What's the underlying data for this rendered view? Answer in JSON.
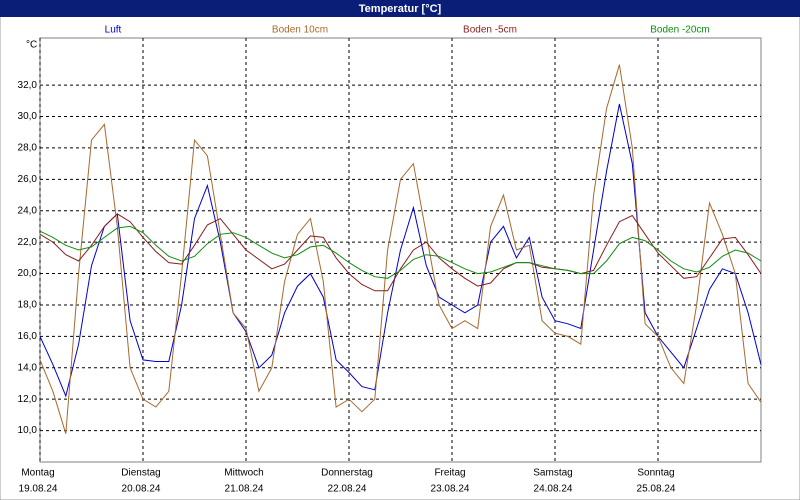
{
  "chart_data": {
    "type": "line",
    "title": "Temperatur [°C]",
    "y_unit": "°C",
    "x": [
      0,
      0.125,
      0.25,
      0.375,
      0.5,
      0.625,
      0.75,
      0.875,
      1,
      1.125,
      1.25,
      1.375,
      1.5,
      1.625,
      1.75,
      1.875,
      2,
      2.125,
      2.25,
      2.375,
      2.5,
      2.625,
      2.75,
      2.875,
      3,
      3.125,
      3.25,
      3.375,
      3.5,
      3.625,
      3.75,
      3.875,
      4,
      4.125,
      4.25,
      4.375,
      4.5,
      4.625,
      4.75,
      4.875,
      5,
      5.125,
      5.25,
      5.375,
      5.5,
      5.625,
      5.75,
      5.875,
      6,
      6.125,
      6.25,
      6.375,
      6.5,
      6.625,
      6.75,
      6.875,
      7
    ],
    "series": [
      {
        "name": "Luft",
        "color": "#0000cc",
        "values": [
          16.0,
          14.2,
          12.2,
          15.5,
          20.5,
          23.0,
          23.8,
          17.0,
          14.5,
          14.4,
          14.4,
          18.0,
          23.5,
          25.6,
          22.0,
          17.5,
          16.3,
          14.0,
          14.8,
          17.5,
          19.2,
          20.0,
          18.5,
          14.5,
          13.7,
          12.8,
          12.6,
          17.5,
          21.5,
          24.2,
          20.5,
          18.5,
          18.0,
          17.5,
          18.0,
          22.0,
          23.0,
          21.0,
          22.3,
          18.5,
          17.0,
          16.8,
          16.5,
          21.5,
          26.5,
          30.8,
          27.0,
          17.5,
          16.0,
          15.0,
          14.0,
          16.5,
          19.0,
          20.3,
          20.0,
          17.5,
          14.2
        ]
      },
      {
        "name": "Boden 10cm",
        "color": "#a8692e",
        "values": [
          14.5,
          12.5,
          9.8,
          20.0,
          28.5,
          29.5,
          23.0,
          14.0,
          12.0,
          11.5,
          12.5,
          20.0,
          28.5,
          27.5,
          22.5,
          17.5,
          16.5,
          12.5,
          14.0,
          19.5,
          22.5,
          23.5,
          19.5,
          11.5,
          12.0,
          11.2,
          12.0,
          21.5,
          26.0,
          27.0,
          22.5,
          18.0,
          16.5,
          17.0,
          16.5,
          23.0,
          25.0,
          21.5,
          21.8,
          17.0,
          16.2,
          16.0,
          15.5,
          25.0,
          30.5,
          33.3,
          28.0,
          16.8,
          16.0,
          14.0,
          13.0,
          18.0,
          24.5,
          22.5,
          20.0,
          13.0,
          11.8
        ]
      },
      {
        "name": "Boden -5cm",
        "color": "#8c1c1c",
        "values": [
          22.5,
          22.0,
          21.2,
          20.8,
          21.8,
          23.0,
          23.8,
          23.3,
          22.3,
          21.4,
          20.7,
          20.6,
          21.8,
          23.1,
          23.5,
          22.5,
          21.5,
          20.9,
          20.3,
          20.6,
          21.5,
          22.4,
          22.3,
          21.0,
          20.0,
          19.3,
          18.9,
          18.9,
          20.3,
          21.5,
          22.0,
          21.0,
          20.3,
          19.7,
          19.2,
          19.4,
          20.3,
          20.7,
          20.7,
          20.4,
          20.3,
          20.2,
          20.0,
          20.2,
          21.8,
          23.3,
          23.7,
          22.5,
          21.3,
          20.5,
          19.7,
          19.8,
          21.0,
          22.2,
          22.3,
          21.2,
          20.0
        ]
      },
      {
        "name": "Boden -20cm",
        "color": "#108c10",
        "values": [
          22.7,
          22.3,
          21.8,
          21.5,
          21.7,
          22.3,
          22.9,
          23.0,
          22.6,
          21.8,
          21.1,
          20.8,
          21.1,
          21.9,
          22.5,
          22.6,
          22.3,
          21.8,
          21.3,
          21.0,
          21.2,
          21.7,
          21.8,
          21.3,
          20.7,
          20.2,
          19.8,
          19.7,
          20.2,
          20.9,
          21.2,
          21.1,
          20.7,
          20.3,
          20.0,
          20.1,
          20.4,
          20.7,
          20.7,
          20.5,
          20.3,
          20.2,
          20.0,
          20.0,
          20.8,
          21.9,
          22.3,
          22.1,
          21.5,
          20.8,
          20.3,
          20.1,
          20.4,
          21.1,
          21.5,
          21.3,
          20.8
        ]
      }
    ],
    "xlim": [
      0,
      7
    ],
    "xticks": [
      {
        "value": 0,
        "label": "Montag"
      },
      {
        "value": 1,
        "label": "Dienstag"
      },
      {
        "value": 2,
        "label": "Mittwoch"
      },
      {
        "value": 3,
        "label": "Donnerstag"
      },
      {
        "value": 4,
        "label": "Freitag"
      },
      {
        "value": 5,
        "label": "Samstag"
      },
      {
        "value": 6,
        "label": "Sonntag"
      }
    ],
    "xtick_dates": [
      "19.08.24",
      "20.08.24",
      "21.08.24",
      "22.08.24",
      "23.08.24",
      "24.08.24",
      "25.08.24"
    ],
    "ylim": [
      8,
      35
    ],
    "yticks": [
      {
        "value": 10,
        "label": "10,0"
      },
      {
        "value": 12,
        "label": "12,0"
      },
      {
        "value": 14,
        "label": "14,0"
      },
      {
        "value": 16,
        "label": "16,0"
      },
      {
        "value": 18,
        "label": "18,0"
      },
      {
        "value": 20,
        "label": "20,0"
      },
      {
        "value": 22,
        "label": "22,0"
      },
      {
        "value": 24,
        "label": "24,0"
      },
      {
        "value": 26,
        "label": "26,0"
      },
      {
        "value": 28,
        "label": "28,0"
      },
      {
        "value": 30,
        "label": "30,0"
      },
      {
        "value": 32,
        "label": "32,0"
      }
    ],
    "grid": true
  }
}
